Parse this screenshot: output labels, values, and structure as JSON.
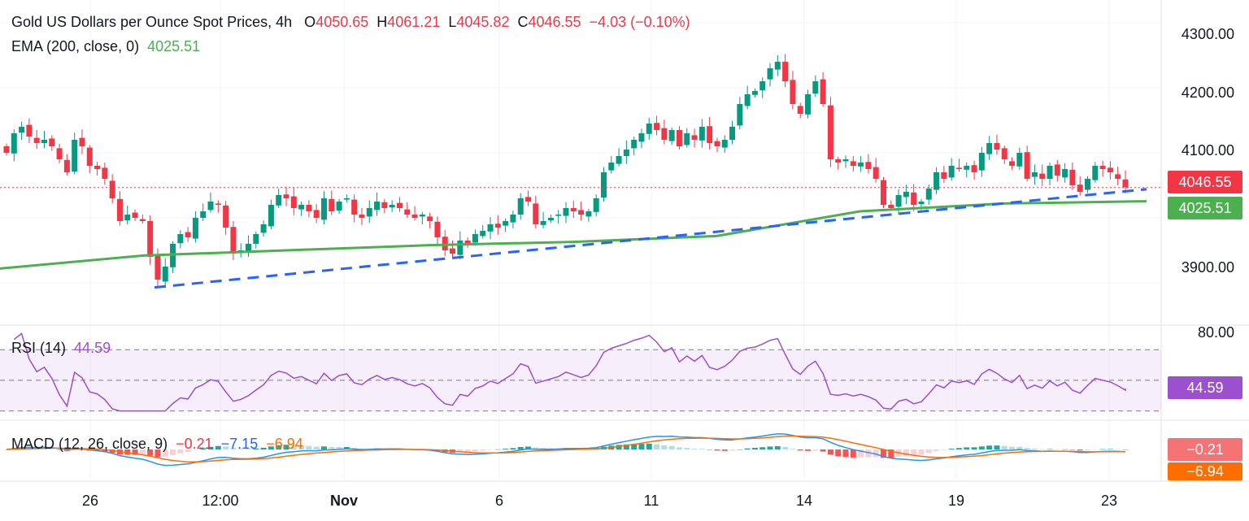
{
  "legend": {
    "title": "Gold US Dollars per Ounce Spot Prices, 4h",
    "o_label": "O",
    "o_value": "4050.65",
    "h_label": "H",
    "h_value": "4061.21",
    "l_label": "L",
    "l_value": "4045.82",
    "c_label": "C",
    "c_value": "4046.55",
    "change": "−4.03 (−0.10%)",
    "ema_label": "EMA (200, close, 0)",
    "ema_value": "4025.51",
    "rsi_label": "RSI (14)",
    "rsi_value": "44.59",
    "macd_label": "MACD (12, 26, close, 9)",
    "macd_hist": "−0.21",
    "macd_line": "−7.15",
    "macd_signal": "−6.94"
  },
  "price_axis": [
    "4300.00",
    "4200.00",
    "4100.00",
    "3900.00"
  ],
  "rsi_axis": [
    "80.00"
  ],
  "tags": {
    "price": "4046.55",
    "ema": "4025.51",
    "rsi": "44.59",
    "macd_hist": "−0.21",
    "macd_signal": "−6.94"
  },
  "time_axis": [
    {
      "label": "26",
      "bold": false
    },
    {
      "label": "12:00",
      "bold": false
    },
    {
      "label": "Nov",
      "bold": true
    },
    {
      "label": "6",
      "bold": false
    },
    {
      "label": "11",
      "bold": false
    },
    {
      "label": "14",
      "bold": false
    },
    {
      "label": "19",
      "bold": false
    },
    {
      "label": "23",
      "bold": false
    }
  ],
  "colors": {
    "up": "#089981",
    "down": "#f23645",
    "ema": "#4caf50",
    "trend": "#2962ff",
    "rsi": "#9c4fcf",
    "macd": "#2196f3",
    "signal": "#ff6d00"
  },
  "chart_data": [
    {
      "type": "candlestick",
      "title": "Gold US Dollars per Ounce Spot Prices, 4h",
      "ylim": [
        3835,
        4335
      ],
      "current_close": 4046.55,
      "ema200_last": 4025.51,
      "closes": [
        4100,
        4130,
        4140,
        4125,
        4115,
        4120,
        4110,
        4090,
        4070,
        4120,
        4110,
        4080,
        4075,
        4060,
        4030,
        3995,
        4005,
        4000,
        3995,
        3940,
        3905,
        3925,
        3960,
        3975,
        3970,
        4000,
        4010,
        4025,
        4020,
        3985,
        3945,
        3950,
        3960,
        3975,
        3990,
        4020,
        4035,
        4030,
        4015,
        4020,
        4010,
        4000,
        4030,
        4010,
        4025,
        4030,
        4005,
        4000,
        4015,
        4025,
        4015,
        4020,
        4015,
        4005,
        4000,
        4005,
        3995,
        3970,
        3950,
        3945,
        3965,
        3960,
        3975,
        3980,
        3990,
        3985,
        3995,
        4005,
        4030,
        4025,
        3990,
        3995,
        4000,
        4005,
        4015,
        4010,
        4005,
        4010,
        4030,
        4070,
        4085,
        4095,
        4105,
        4120,
        4130,
        4145,
        4135,
        4120,
        4135,
        4110,
        4130,
        4120,
        4140,
        4115,
        4110,
        4120,
        4140,
        4175,
        4190,
        4195,
        4210,
        4230,
        4240,
        4210,
        4175,
        4160,
        4190,
        4210,
        4175,
        4090,
        4085,
        4090,
        4080,
        4085,
        4075,
        4060,
        4020,
        4015,
        4035,
        4040,
        4020,
        4025,
        4045,
        4070,
        4060,
        4080,
        4075,
        4080,
        4070,
        4100,
        4115,
        4105,
        4090,
        4080,
        4100,
        4060,
        4070,
        4060,
        4080,
        4065,
        4075,
        4050,
        4040,
        4060,
        4080,
        4075,
        4070,
        4060,
        4047
      ],
      "trendline": [
        [
          0,
          3893
        ],
        [
          1,
          4044
        ]
      ],
      "ema_points": [
        3922,
        3942,
        3950,
        3958,
        3963,
        3972,
        4010,
        4022,
        4025.51
      ]
    },
    {
      "type": "line",
      "title": "RSI (14)",
      "ylim": [
        25,
        85
      ],
      "levels": [
        70,
        50,
        30
      ],
      "last": 44.59
    },
    {
      "type": "macd",
      "title": "MACD (12, 26, close, 9)",
      "hist_last": -0.21,
      "macd_last": -7.15,
      "signal_last": -6.94
    }
  ]
}
